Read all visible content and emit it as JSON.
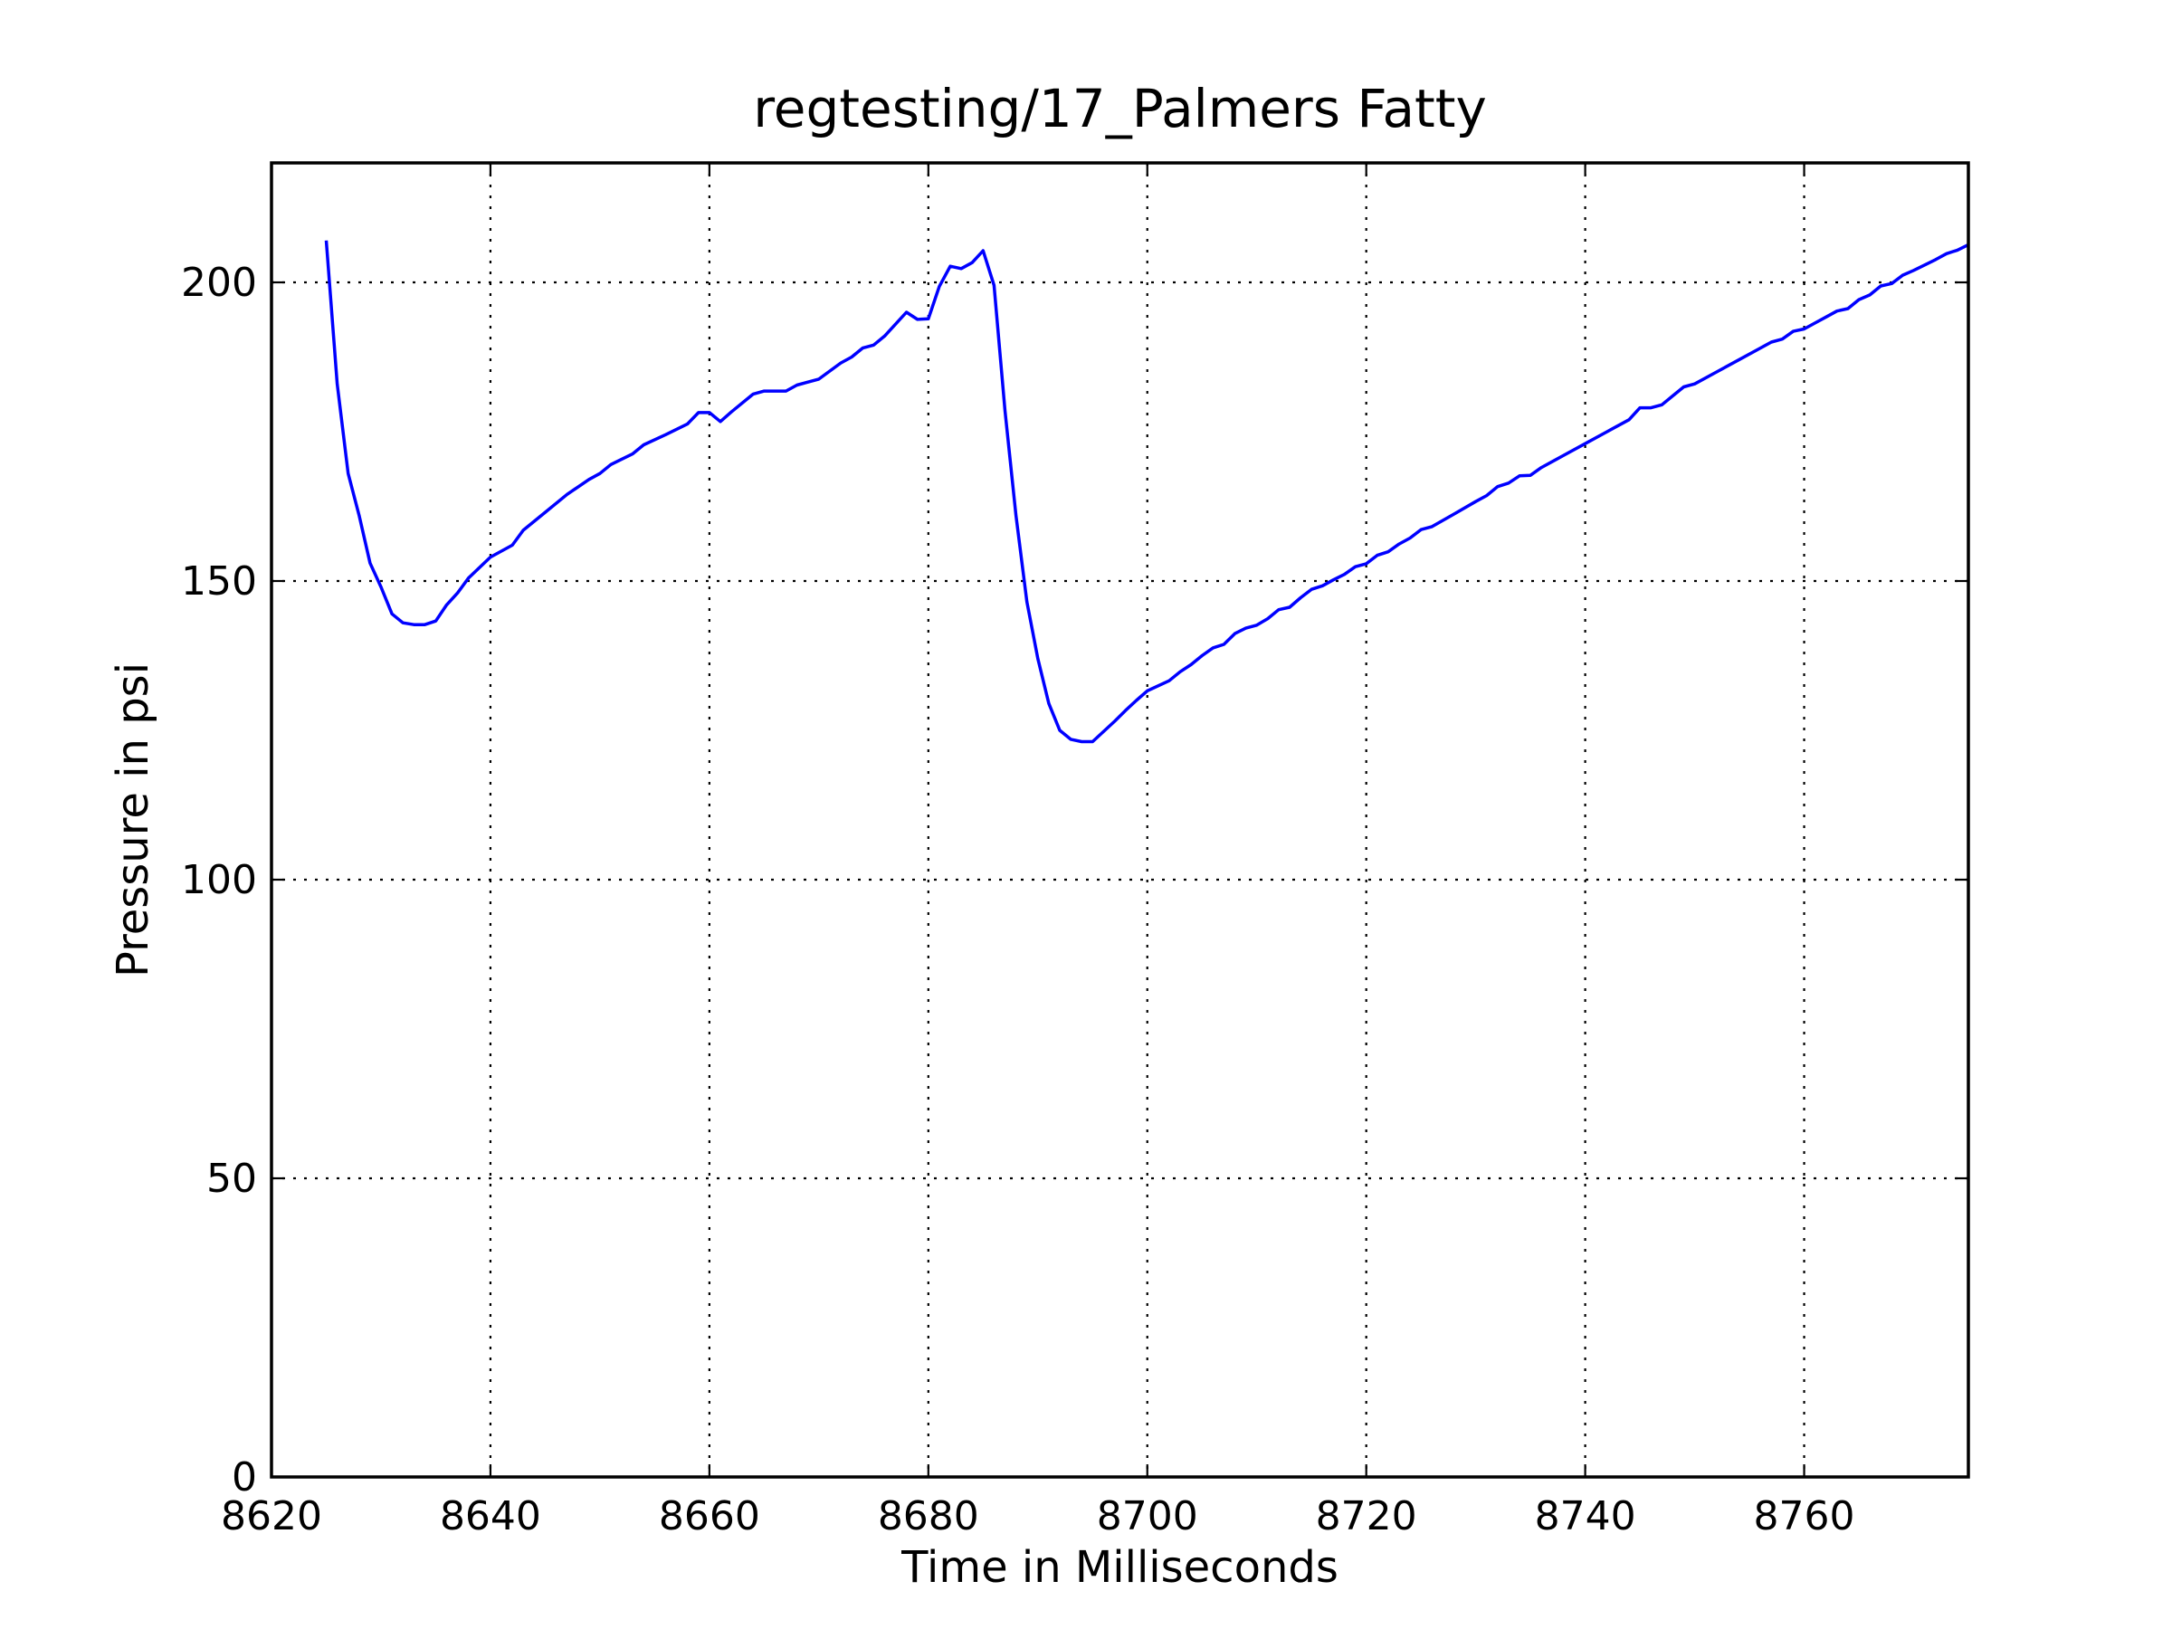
{
  "chart_data": {
    "type": "line",
    "title": "regtesting/17_Palmers Fatty",
    "xlabel": "Time in Milliseconds",
    "ylabel": "Pressure in psi",
    "xlim": [
      8620,
      8775
    ],
    "ylim": [
      0,
      220
    ],
    "xticks": [
      8620,
      8640,
      8660,
      8680,
      8700,
      8720,
      8740,
      8760
    ],
    "yticks": [
      0,
      50,
      100,
      150,
      200
    ],
    "grid": true,
    "colors": {
      "series": "#0000ff"
    },
    "series": [
      {
        "x": [
          8625,
          8626,
          8627,
          8628,
          8629,
          8630,
          8631,
          8632,
          8633,
          8634,
          8635,
          8636,
          8637,
          8638,
          8640,
          8642,
          8643,
          8645,
          8647,
          8649,
          8650,
          8651,
          8653,
          8654,
          8656,
          8658,
          8659,
          8660,
          8661,
          8662,
          8664,
          8665,
          8667,
          8668,
          8670,
          8672,
          8673,
          8674,
          8675,
          8676,
          8678,
          8679,
          8680,
          8681,
          8682,
          8683,
          8684,
          8685,
          8686,
          8687,
          8688,
          8689,
          8690,
          8691,
          8692,
          8693,
          8694,
          8695,
          8697,
          8698,
          8699,
          8700,
          8702,
          8703,
          8704,
          8705,
          8706,
          8707,
          8708,
          8709,
          8710,
          8711,
          8712,
          8713,
          8714,
          8715,
          8716,
          8717,
          8718,
          8719,
          8720,
          8721,
          8722,
          8723,
          8724,
          8725,
          8726,
          8728,
          8730,
          8731,
          8732,
          8733,
          8734,
          8735,
          8736,
          8738,
          8740,
          8742,
          8744,
          8745,
          8746,
          8747,
          8748,
          8749,
          8750,
          8752,
          8754,
          8756,
          8757,
          8758,
          8759,
          8760,
          8761,
          8762,
          8763,
          8764,
          8765,
          8766,
          8767,
          8768,
          8769,
          8770,
          8772,
          8773,
          8774,
          8775
        ],
        "y": [
          207,
          183,
          168,
          161,
          153,
          149,
          144.5,
          143,
          142.7,
          142.7,
          143.3,
          146,
          148,
          150.5,
          154,
          156,
          158.5,
          161.5,
          164.5,
          167,
          168,
          169.5,
          171.3,
          172.8,
          174.5,
          176.3,
          178.2,
          178.2,
          176.7,
          178.3,
          181.3,
          181.8,
          181.8,
          182.8,
          183.8,
          186.5,
          187.5,
          189,
          189.5,
          191,
          195,
          193.8,
          193.9,
          199.3,
          202.7,
          202.3,
          203.3,
          205.3,
          199.5,
          178.5,
          161,
          146.5,
          137,
          129.5,
          125,
          123.5,
          123.1,
          123.1,
          126.5,
          128.3,
          130,
          131.6,
          133.3,
          134.8,
          136,
          137.5,
          138.8,
          139.4,
          141.2,
          142.1,
          142.6,
          143.7,
          145.2,
          145.6,
          147.2,
          148.6,
          149.2,
          150.2,
          151.1,
          152.4,
          152.9,
          154.3,
          154.9,
          156.2,
          157.2,
          158.6,
          159.1,
          161.2,
          163.3,
          164.3,
          165.8,
          166.4,
          167.6,
          167.7,
          169,
          171,
          173,
          175,
          177,
          179,
          179,
          179.5,
          181,
          182.5,
          183,
          185,
          187,
          189,
          190,
          190.5,
          191.8,
          192.2,
          193.2,
          194.2,
          195.2,
          195.6,
          197.1,
          197.9,
          199.4,
          199.8,
          201.2,
          202,
          203.8,
          204.8,
          205.4,
          206.3
        ]
      }
    ]
  }
}
